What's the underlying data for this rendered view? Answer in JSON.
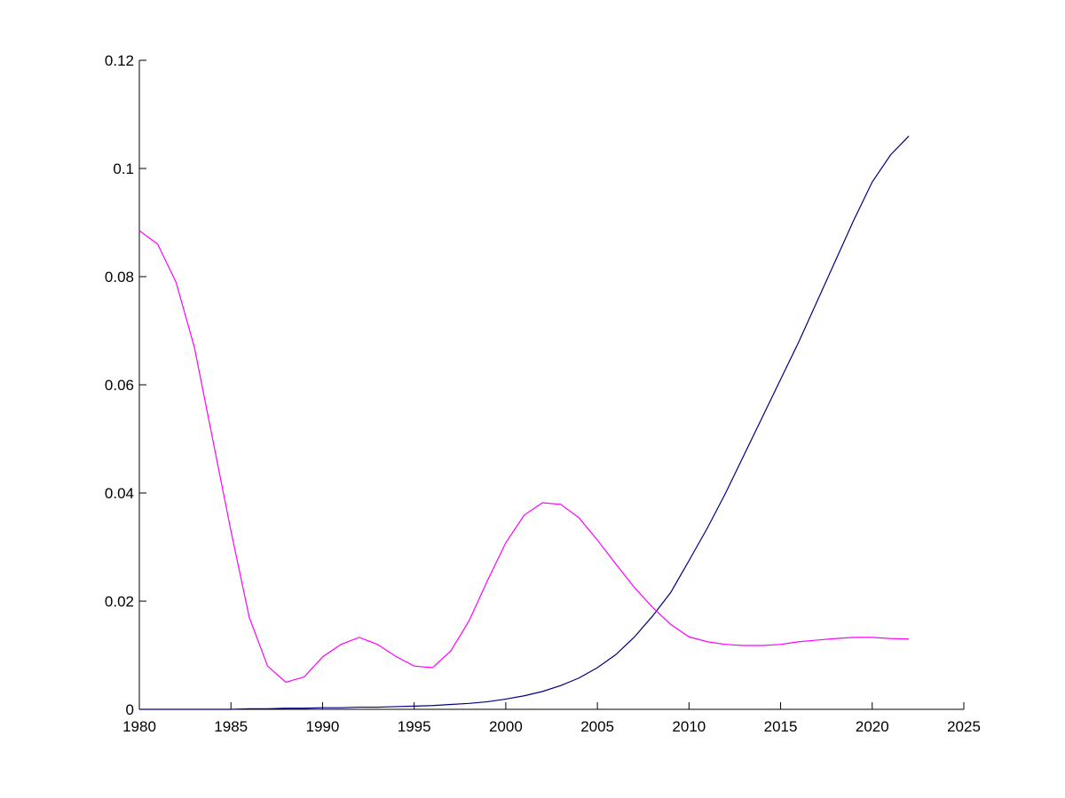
{
  "chart_data": {
    "type": "line",
    "x": [
      1980,
      1981,
      1982,
      1983,
      1984,
      1985,
      1986,
      1987,
      1988,
      1989,
      1990,
      1991,
      1992,
      1993,
      1994,
      1995,
      1996,
      1997,
      1998,
      1999,
      2000,
      2001,
      2002,
      2003,
      2004,
      2005,
      2006,
      2007,
      2008,
      2009,
      2010,
      2011,
      2012,
      2013,
      2014,
      2015,
      2016,
      2017,
      2018,
      2019,
      2020,
      2021,
      2022
    ],
    "series": [
      {
        "color": "#000080",
        "values": [
          0,
          0,
          0,
          0,
          0,
          0,
          0.0001,
          0.0001,
          0.0002,
          0.0002,
          0.0003,
          0.0003,
          0.0004,
          0.0004,
          0.0005,
          0.0006,
          0.0007,
          0.0009,
          0.0011,
          0.0014,
          0.0019,
          0.0025,
          0.0033,
          0.0044,
          0.0058,
          0.0077,
          0.0101,
          0.0133,
          0.0172,
          0.0216,
          0.0275,
          0.0335,
          0.04,
          0.047,
          0.054,
          0.061,
          0.068,
          0.0755,
          0.083,
          0.0905,
          0.0975,
          0.1025,
          0.106
        ]
      },
      {
        "color": "#ff00ff",
        "values": [
          0.0885,
          0.086,
          0.079,
          0.067,
          0.05,
          0.033,
          0.017,
          0.008,
          0.005,
          0.006,
          0.0097,
          0.012,
          0.0133,
          0.012,
          0.0098,
          0.008,
          0.0077,
          0.0108,
          0.0164,
          0.0238,
          0.0308,
          0.0359,
          0.0382,
          0.0379,
          0.0354,
          0.0313,
          0.0269,
          0.0226,
          0.0189,
          0.0157,
          0.0134,
          0.0125,
          0.012,
          0.0118,
          0.0118,
          0.012,
          0.0125,
          0.0128,
          0.0131,
          0.0133,
          0.0133,
          0.0131,
          0.013
        ]
      }
    ],
    "xlim": [
      1980,
      2025
    ],
    "xticks": [
      1980,
      1985,
      1990,
      1995,
      2000,
      2005,
      2010,
      2015,
      2020,
      2025
    ],
    "ylim": [
      0,
      0.12
    ],
    "yticks": [
      0,
      0.02,
      0.04,
      0.06,
      0.08,
      0.1,
      0.12
    ],
    "grid": false
  }
}
